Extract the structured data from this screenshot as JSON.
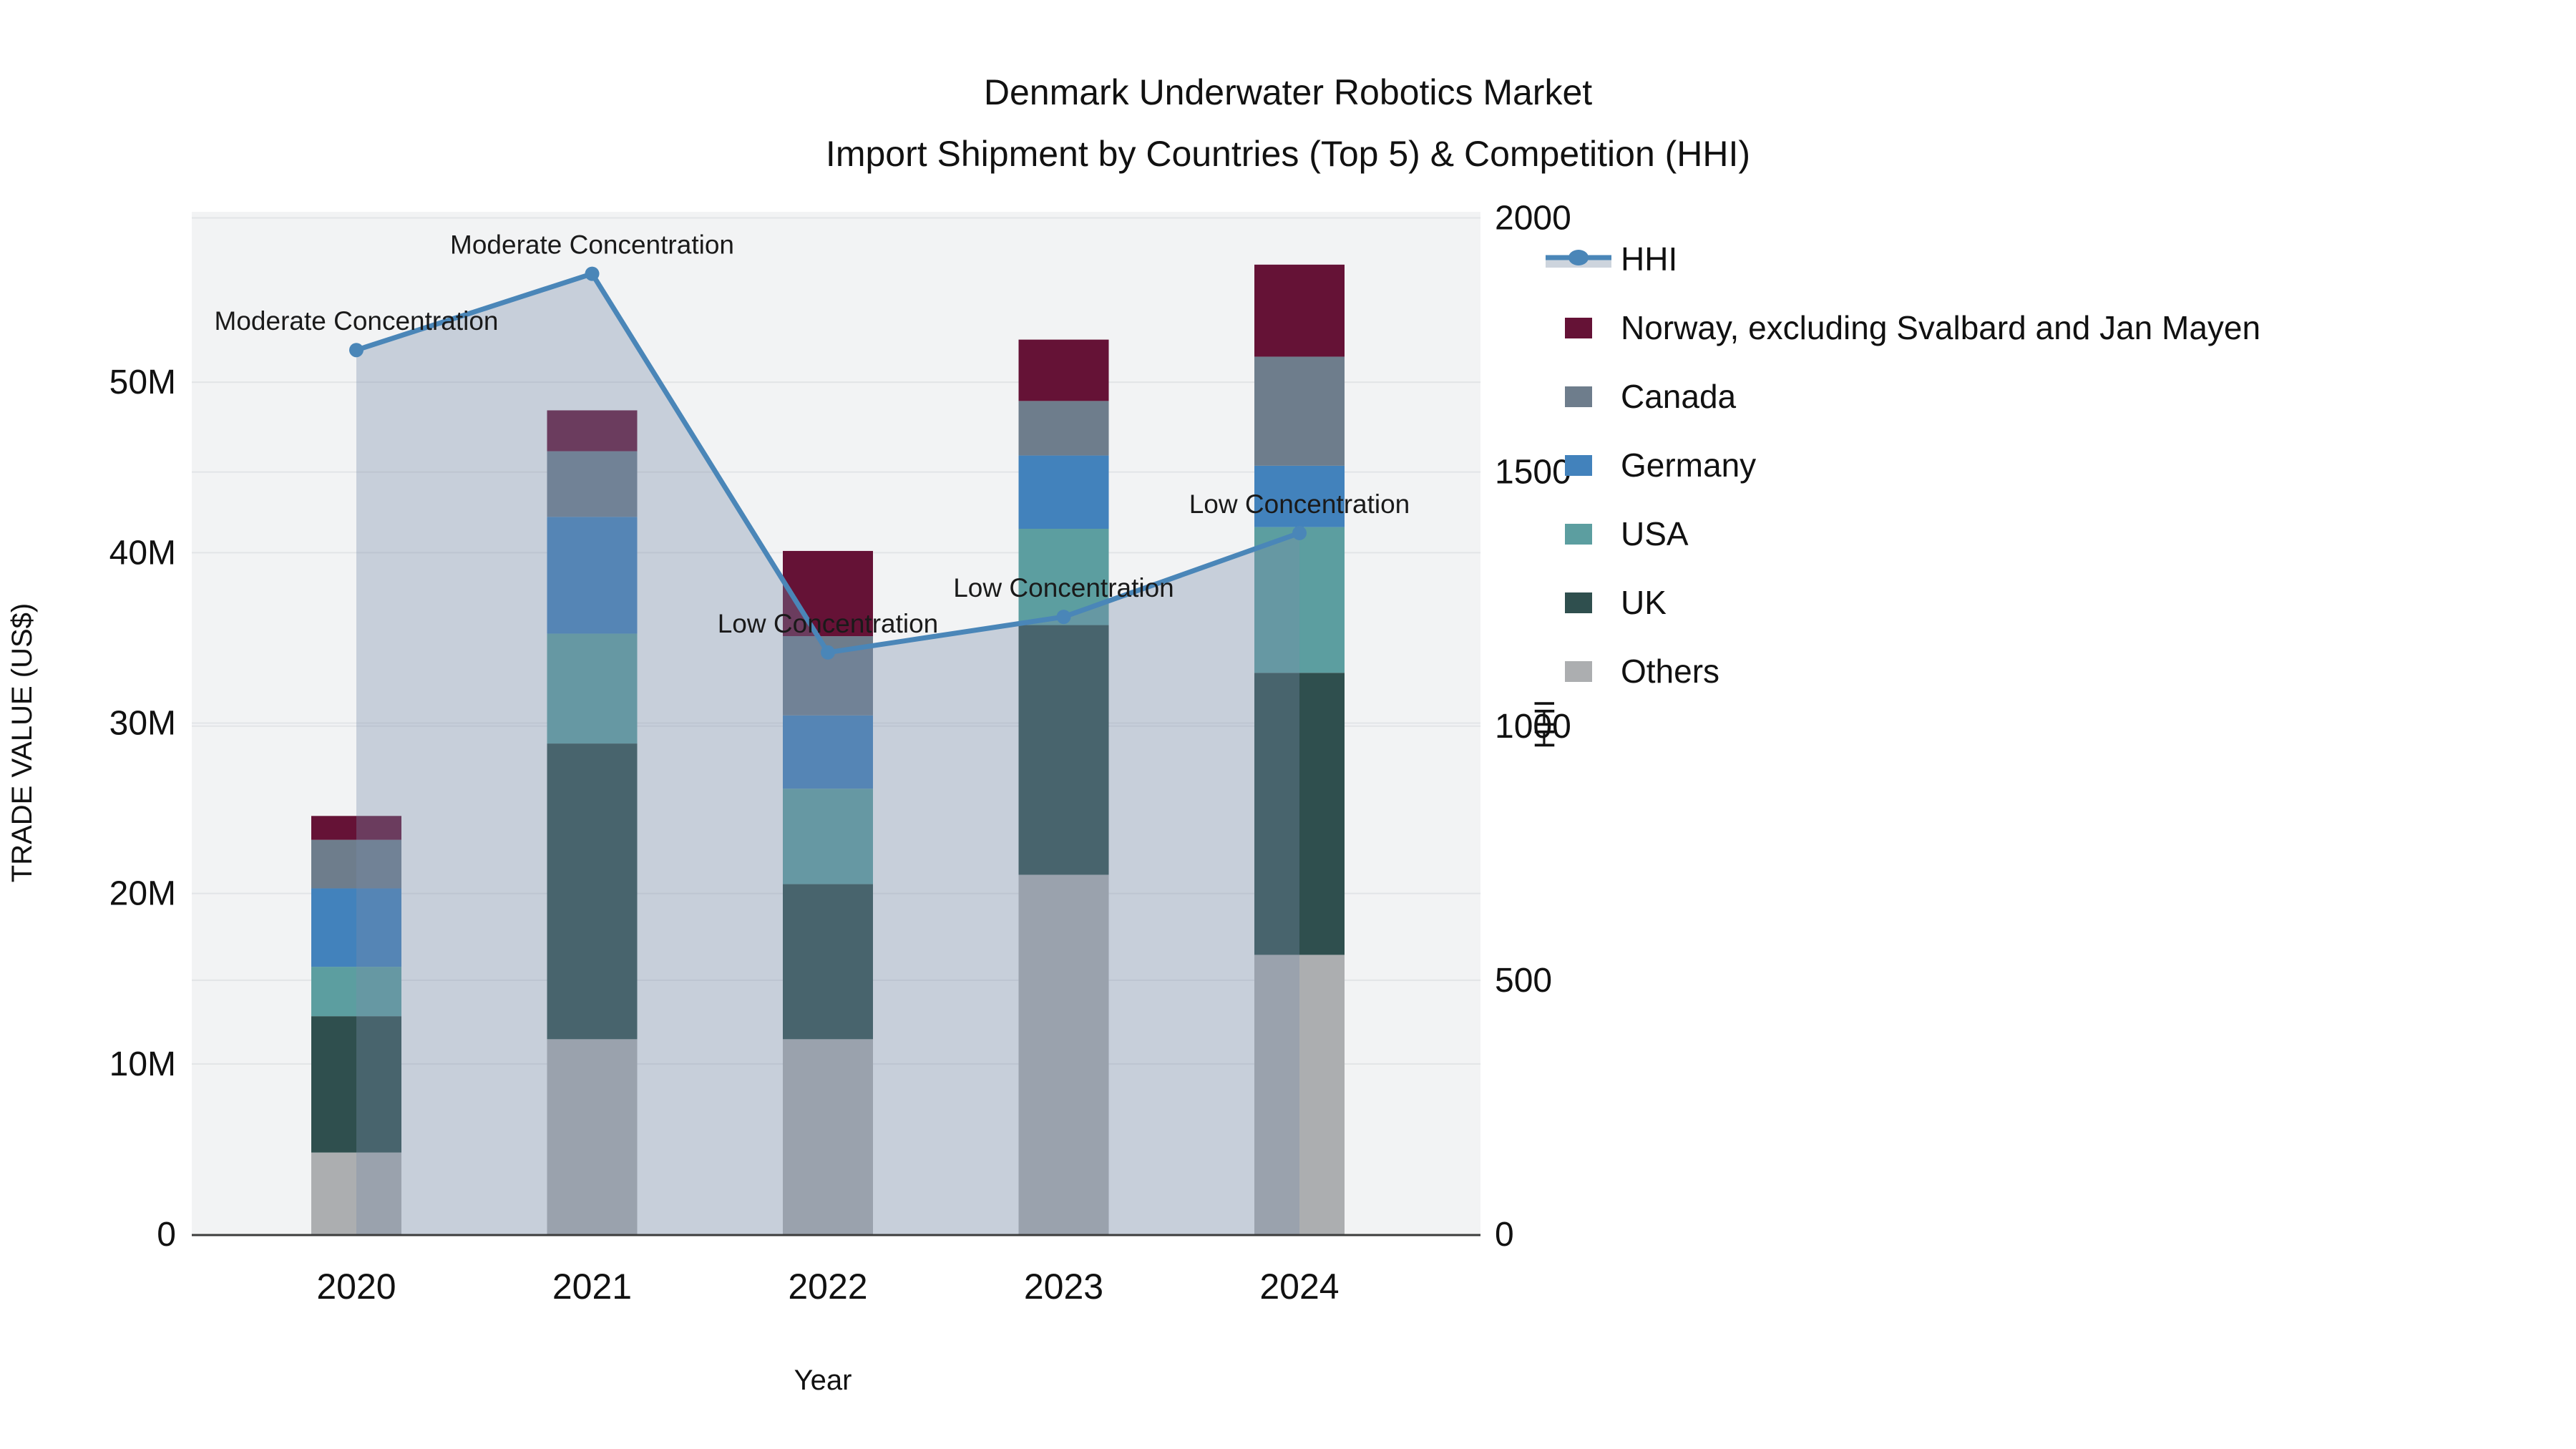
{
  "title": {
    "line1": "Denmark Underwater Robotics Market",
    "line2": "Import Shipment by Countries (Top 5) & Competition (HHI)"
  },
  "chart_data": {
    "type": "bar+line",
    "categories": [
      "2020",
      "2021",
      "2022",
      "2023",
      "2024"
    ],
    "value_unit": "million US$",
    "series": [
      {
        "name": "Others",
        "color": "#ACAEB0",
        "values": [
          4.8,
          11.45,
          11.45,
          21.1,
          16.4
        ]
      },
      {
        "name": "UK",
        "color": "#2F4F4E",
        "values": [
          8.0,
          17.35,
          9.1,
          14.65,
          16.55
        ]
      },
      {
        "name": "USA",
        "color": "#5C9EA0",
        "values": [
          2.9,
          6.45,
          5.6,
          5.65,
          8.55
        ]
      },
      {
        "name": "Germany",
        "color": "#4282BC",
        "values": [
          4.6,
          6.85,
          4.3,
          4.3,
          3.6
        ]
      },
      {
        "name": "Canada",
        "color": "#6E7D8C",
        "values": [
          2.85,
          3.85,
          4.65,
          3.2,
          6.4
        ]
      },
      {
        "name": "Norway, excluding Svalbard and Jan Mayen",
        "color": "#651236",
        "values": [
          1.4,
          2.4,
          5.0,
          3.6,
          5.4
        ]
      }
    ],
    "bar_totals": [
      24.55,
      48.35,
      40.1,
      52.5,
      56.9
    ],
    "line": {
      "name": "HHI",
      "color": "#4A86B8",
      "area_fill": "rgba(120,140,170,0.35)",
      "values": [
        1740,
        1890,
        1145,
        1215,
        1380
      ],
      "annotations": [
        "Moderate Concentration",
        "Moderate Concentration",
        "Low Concentration",
        "Low Concentration",
        "Low Concentration"
      ]
    },
    "axes": {
      "left": {
        "title": "TRADE VALUE (US$)",
        "ticks": [
          "0",
          "10M",
          "20M",
          "30M",
          "40M",
          "50M"
        ],
        "tick_values": [
          0,
          10,
          20,
          30,
          40,
          50
        ],
        "max": 60
      },
      "right": {
        "title": "HHI",
        "ticks": [
          "0",
          "500",
          "1000",
          "1500",
          "2000"
        ],
        "tick_values": [
          0,
          500,
          1000,
          1500,
          2000
        ],
        "max": 2012
      },
      "x": {
        "title": "Year"
      }
    },
    "legend_order": [
      "HHI",
      "Norway, excluding Svalbard and Jan Mayen",
      "Canada",
      "Germany",
      "USA",
      "UK",
      "Others"
    ],
    "layout_hints": {
      "grid": "on",
      "legend_position": "right",
      "plot_background": "#F2F3F4"
    }
  }
}
